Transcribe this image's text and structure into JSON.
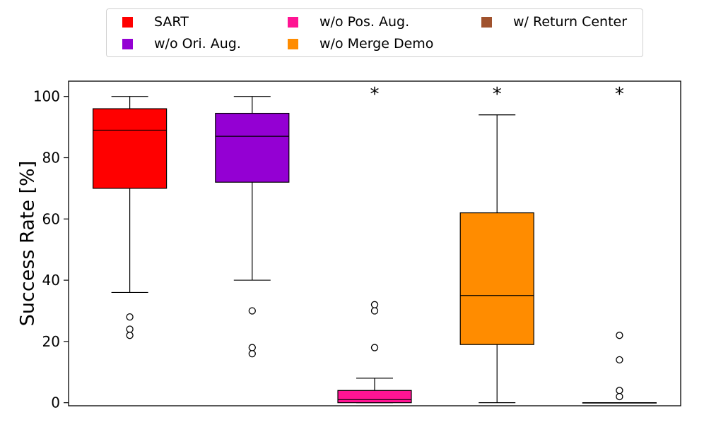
{
  "chart_data": {
    "type": "box",
    "ylabel": "Success Rate [%]",
    "ylim": [
      -1,
      105
    ],
    "yticks": [
      0,
      20,
      40,
      60,
      80,
      100
    ],
    "legend_position": "top-center",
    "series": [
      {
        "name": "SART",
        "color": "#ff0000",
        "whisker_low": 36,
        "q1": 70,
        "median": 89,
        "q3": 96,
        "whisker_high": 100,
        "outliers": [
          28,
          24,
          22
        ],
        "significance": ""
      },
      {
        "name": "w/o Ori. Aug.",
        "color": "#9400d3",
        "whisker_low": 40,
        "q1": 72,
        "median": 87,
        "q3": 94.5,
        "whisker_high": 100,
        "outliers": [
          30,
          18,
          16
        ],
        "significance": ""
      },
      {
        "name": "w/o Pos. Aug.",
        "color": "#ff1493",
        "whisker_low": 0,
        "q1": 0,
        "median": 1,
        "q3": 4,
        "whisker_high": 8,
        "outliers": [
          32,
          30,
          18
        ],
        "significance": "*"
      },
      {
        "name": "w/o Merge Demo",
        "color": "#ff8c00",
        "whisker_low": 0,
        "q1": 19,
        "median": 35,
        "q3": 62,
        "whisker_high": 94,
        "outliers": [],
        "significance": "*"
      },
      {
        "name": "w/ Return Center",
        "color": "#a0522d",
        "whisker_low": 0,
        "q1": 0,
        "median": 0,
        "q3": 0,
        "whisker_high": 0,
        "outliers": [
          22,
          14,
          4,
          2
        ],
        "significance": "*"
      }
    ]
  }
}
